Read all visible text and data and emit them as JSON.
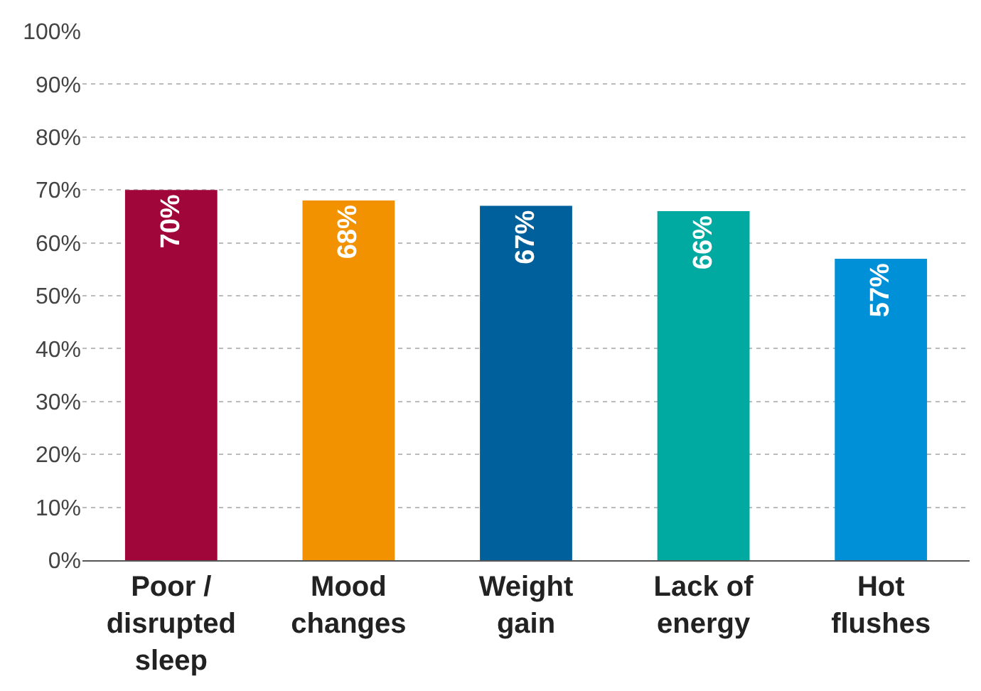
{
  "chart_data": {
    "type": "bar",
    "categories": [
      "Poor / disrupted sleep",
      "Mood changes",
      "Weight gain",
      "Lack of energy",
      "Hot flushes"
    ],
    "values": [
      70,
      68,
      67,
      66,
      57
    ],
    "colors": [
      "#a0063a",
      "#f39200",
      "#00609c",
      "#00aaa0",
      "#0090d8"
    ],
    "value_labels": [
      "70%",
      "68%",
      "67%",
      "66%",
      "57%"
    ],
    "ylim": [
      0,
      100
    ],
    "yticks": [
      {
        "value": 0,
        "label": "0%"
      },
      {
        "value": 10,
        "label": "10%"
      },
      {
        "value": 20,
        "label": "20%"
      },
      {
        "value": 30,
        "label": "30%"
      },
      {
        "value": 40,
        "label": "40%"
      },
      {
        "value": 50,
        "label": "50%"
      },
      {
        "value": 60,
        "label": "60%"
      },
      {
        "value": 70,
        "label": "70%"
      },
      {
        "value": 80,
        "label": "80%"
      },
      {
        "value": 90,
        "label": "90%"
      },
      {
        "value": 100,
        "label": "100%"
      }
    ],
    "grid": "y"
  }
}
